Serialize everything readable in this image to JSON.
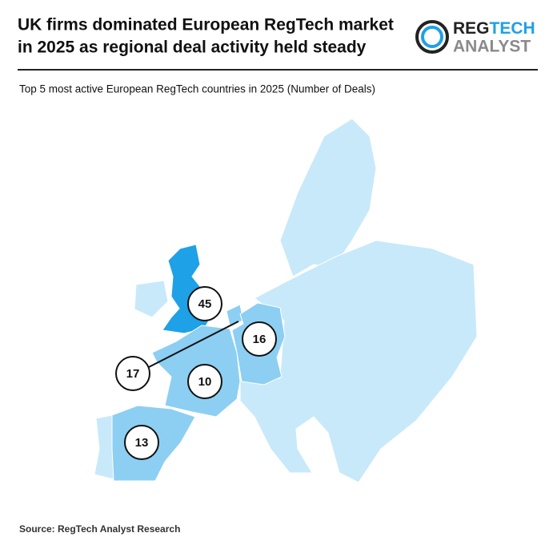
{
  "header": {
    "title_lines": [
      "UK firms dominated European RegTech market",
      "in 2025 as regional deal activity held steady"
    ],
    "logo": {
      "word1_part1": "REG",
      "word1_part2": "TECH",
      "word2": "ANALYST"
    }
  },
  "subtitle": "Top 5 most active European RegTech countries in 2025 (Number of Deals)",
  "map": {
    "base_color": "#c8e9fa",
    "regions": [
      {
        "value": 45,
        "color": "#1ea1e6"
      },
      {
        "value": 16,
        "color": "#8ccff2"
      },
      {
        "value": 17,
        "color": "#8ccff2"
      },
      {
        "value": 10,
        "color": "#8ccff2"
      },
      {
        "value": 13,
        "color": "#8ccff2"
      }
    ]
  },
  "source": "Source: RegTech Analyst Research"
}
